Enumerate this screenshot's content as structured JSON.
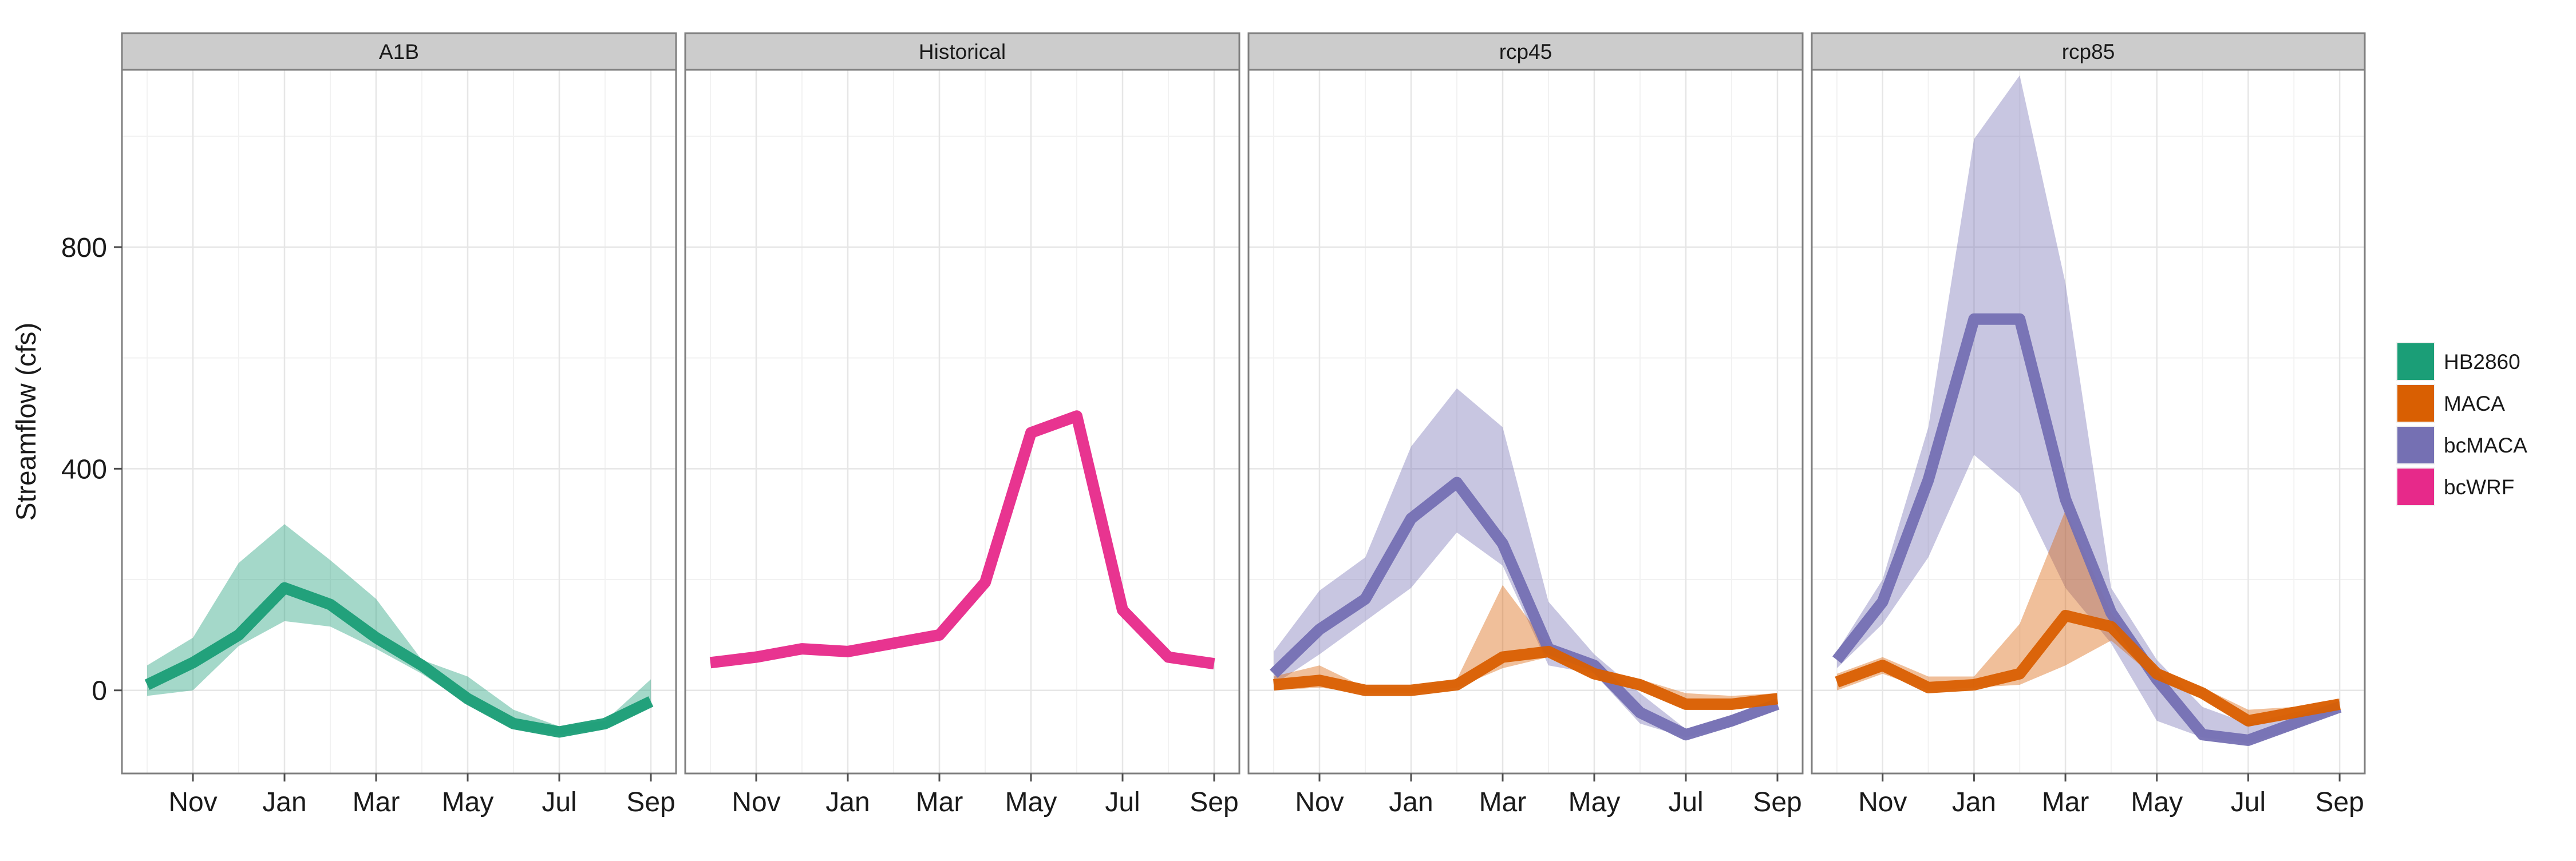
{
  "chart_data": {
    "type": "line",
    "ylabel": "Streamflow (cfs)",
    "xlabel": "",
    "y_ticks": [
      0,
      400,
      800
    ],
    "ylim": [
      -150,
      1120
    ],
    "x_ticks": [
      {
        "label": "Nov",
        "x": 2
      },
      {
        "label": "Jan",
        "x": 4
      },
      {
        "label": "Mar",
        "x": 6
      },
      {
        "label": "May",
        "x": 8
      },
      {
        "label": "Jul",
        "x": 10
      },
      {
        "label": "Sep",
        "x": 12
      }
    ],
    "xlim": [
      0.45,
      12.55
    ],
    "grid": true,
    "legend_position": "right",
    "legend": [
      {
        "name": "HB2860",
        "color": "#1b9e77"
      },
      {
        "name": "MACA",
        "color": "#d95f02"
      },
      {
        "name": "bcMACA",
        "color": "#7570b3"
      },
      {
        "name": "bcWRF",
        "color": "#e7298a"
      }
    ],
    "x_note": "x = water-year month, 1 = Oct ... 12 = Sep",
    "panels": [
      {
        "title": "A1B",
        "series": [
          {
            "name": "HB2860",
            "color": "#1b9e77",
            "x": [
              1,
              2,
              3,
              4,
              5,
              6,
              7,
              8,
              9,
              10,
              11,
              12
            ],
            "mean": [
              10,
              50,
              100,
              185,
              155,
              95,
              45,
              -15,
              -60,
              -75,
              -60,
              -20
            ],
            "low": [
              -10,
              0,
              80,
              125,
              115,
              75,
              30,
              -25,
              -70,
              -80,
              -70,
              -30
            ],
            "high": [
              45,
              95,
              230,
              300,
              235,
              165,
              55,
              25,
              -35,
              -65,
              -55,
              20
            ]
          }
        ]
      },
      {
        "title": "Historical",
        "series": [
          {
            "name": "bcWRF",
            "color": "#e7298a",
            "x": [
              1,
              2,
              3,
              4,
              5,
              6,
              7,
              8,
              9,
              10,
              11,
              12
            ],
            "mean": [
              50,
              60,
              75,
              70,
              85,
              100,
              195,
              465,
              495,
              145,
              60,
              48
            ]
          }
        ]
      },
      {
        "title": "rcp45",
        "series": [
          {
            "name": "bcMACA",
            "color": "#7570b3",
            "x": [
              1,
              2,
              3,
              4,
              5,
              6,
              7,
              8,
              9,
              10,
              11,
              12
            ],
            "mean": [
              30,
              110,
              165,
              310,
              375,
              265,
              75,
              45,
              -40,
              -80,
              -55,
              -25
            ],
            "low": [
              10,
              65,
              125,
              185,
              285,
              225,
              45,
              30,
              -60,
              -85,
              -65,
              -35
            ],
            "high": [
              70,
              180,
              240,
              440,
              545,
              475,
              160,
              65,
              -5,
              -70,
              -45,
              -15
            ]
          },
          {
            "name": "MACA",
            "color": "#d95f02",
            "x": [
              1,
              2,
              3,
              4,
              5,
              6,
              7,
              8,
              9,
              10,
              11,
              12
            ],
            "mean": [
              10,
              18,
              0,
              0,
              10,
              60,
              70,
              30,
              10,
              -25,
              -25,
              -15
            ],
            "low": [
              0,
              5,
              -5,
              -5,
              5,
              40,
              60,
              20,
              0,
              -35,
              -35,
              -25
            ],
            "high": [
              25,
              45,
              5,
              5,
              20,
              190,
              80,
              40,
              20,
              -5,
              -10,
              -5
            ]
          }
        ]
      },
      {
        "title": "rcp85",
        "series": [
          {
            "name": "bcMACA",
            "color": "#7570b3",
            "x": [
              1,
              2,
              3,
              4,
              5,
              6,
              7,
              8,
              9,
              10,
              11,
              12
            ],
            "mean": [
              55,
              160,
              380,
              670,
              670,
              345,
              140,
              20,
              -80,
              -90,
              -60,
              -30
            ],
            "low": [
              40,
              120,
              240,
              425,
              355,
              185,
              85,
              -55,
              -85,
              -95,
              -70,
              -35
            ],
            "high": [
              70,
              200,
              475,
              995,
              1110,
              735,
              185,
              55,
              -30,
              -60,
              -40,
              -20
            ]
          },
          {
            "name": "MACA",
            "color": "#d95f02",
            "x": [
              1,
              2,
              3,
              4,
              5,
              6,
              7,
              8,
              9,
              10,
              11,
              12
            ],
            "mean": [
              15,
              45,
              5,
              10,
              30,
              135,
              115,
              30,
              -5,
              -55,
              -40,
              -25
            ],
            "low": [
              0,
              30,
              0,
              5,
              10,
              45,
              90,
              20,
              -15,
              -65,
              -50,
              -30
            ],
            "high": [
              30,
              60,
              25,
              25,
              120,
              325,
              140,
              40,
              5,
              -35,
              -30,
              -15
            ]
          }
        ]
      }
    ]
  }
}
